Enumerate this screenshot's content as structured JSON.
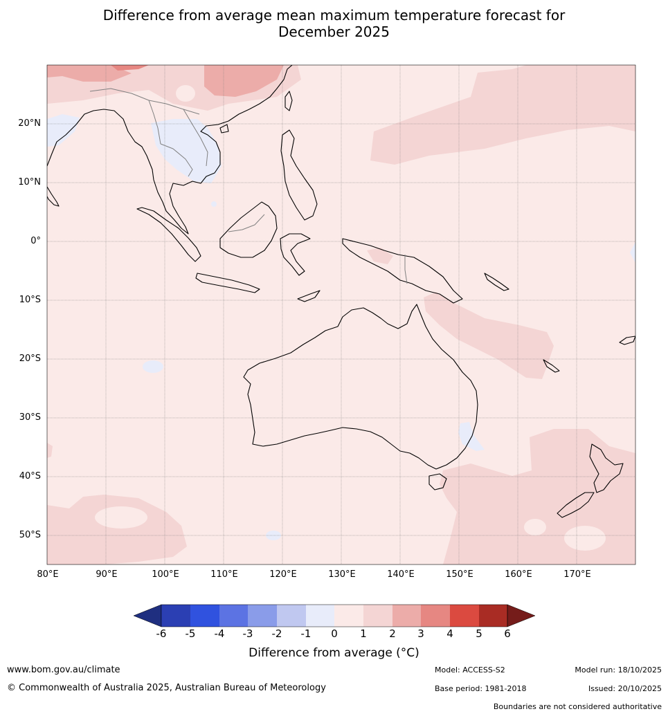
{
  "title_line1": "Difference from average mean maximum temperature forecast for",
  "title_line2": "December 2025",
  "map": {
    "lat_labels": [
      "20°N",
      "10°N",
      "0°",
      "10°S",
      "20°S",
      "30°S",
      "40°S",
      "50°S"
    ],
    "lon_labels": [
      "80°E",
      "90°E",
      "100°E",
      "110°E",
      "120°E",
      "130°E",
      "140°E",
      "150°E",
      "160°E",
      "170°E"
    ],
    "colors": {
      "background_0_to_1": "#fbeae8",
      "anomaly_1_to_2": "#f4d5d4",
      "anomaly_2_to_3": "#ecaca9",
      "anomaly_3_to_4": "#e68782",
      "anomaly_minus1_to_0": "#e8ecfa",
      "coastline": "#000000",
      "borders": "#808080"
    }
  },
  "colorbar": {
    "ticks": [
      "-6",
      "-5",
      "-4",
      "-3",
      "-2",
      "-1",
      "0",
      "1",
      "2",
      "3",
      "4",
      "5",
      "6"
    ],
    "colors": [
      "#1f2f80",
      "#2b3fb3",
      "#3052df",
      "#5c73e3",
      "#8a9ce9",
      "#c0c8f0",
      "#e8ecfa",
      "#fbeae8",
      "#f4d5d4",
      "#ecaca9",
      "#e68782",
      "#db4a40",
      "#a92c24",
      "#751c1a"
    ],
    "label": "Difference from average (°C)"
  },
  "footer": {
    "website": "www.bom.gov.au/climate",
    "copyright": "© Commonwealth of Australia 2025, Australian Bureau of Meteorology",
    "model": "Model: ACCESS-S2",
    "base_period": "Base period: 1981-2018",
    "model_run": "Model run: 18/10/2025",
    "issued": "Issued: 20/10/2025",
    "disclaimer": "Boundaries are not considered authoritative"
  }
}
